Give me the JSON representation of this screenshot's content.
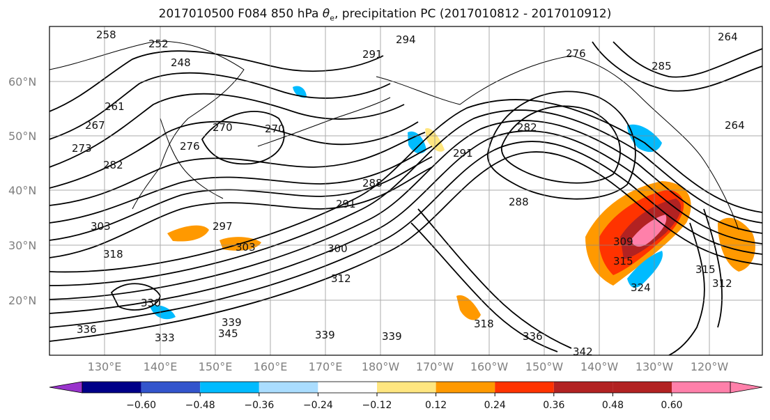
{
  "title": {
    "prefix": "2017010500 F084 850 hPa ",
    "theta": "θ",
    "sub": "e",
    "suffix": ", precipitation PC (2017010812 - 2017010912)"
  },
  "map": {
    "lat_labels": [
      "60°N",
      "50°N",
      "40°N",
      "30°N",
      "20°N"
    ],
    "lon_labels": [
      "130°E",
      "140°E",
      "150°E",
      "160°E",
      "170°E",
      "180°W",
      "170°W",
      "160°W",
      "150°W",
      "140°W",
      "130°W",
      "120°W"
    ],
    "contour_labels": [
      "258",
      "252",
      "248",
      "264",
      "261",
      "267",
      "273",
      "270",
      "276",
      "282",
      "291",
      "294",
      "276",
      "264",
      "285",
      "270",
      "282",
      "291",
      "288",
      "291",
      "288",
      "297",
      "303",
      "300",
      "303",
      "309",
      "312",
      "315",
      "318",
      "315",
      "312",
      "330",
      "339",
      "345",
      "333",
      "336",
      "339",
      "339",
      "336",
      "342",
      "324",
      "318"
    ]
  },
  "colorbar": {
    "colors": [
      "#9933cc",
      "#000088",
      "#3355cc",
      "#00bbff",
      "#aaddff",
      "#ffffff",
      "#ffe680",
      "#ff9900",
      "#ff3300",
      "#b22222",
      "#ff80aa"
    ],
    "tick_labels": [
      "−0.60",
      "−0.48",
      "−0.36",
      "−0.24",
      "−0.12",
      "0.12",
      "0.24",
      "0.36",
      "0.48",
      "0.60"
    ]
  }
}
